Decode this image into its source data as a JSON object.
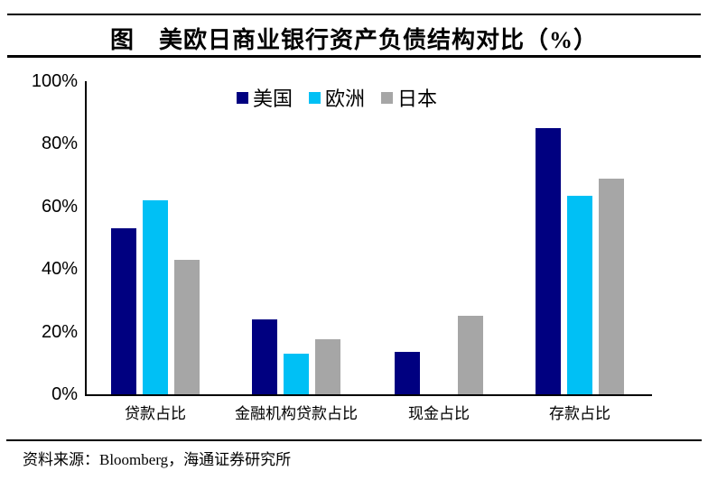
{
  "page": {
    "title": "图　美欧日商业银行资产负债结构对比（%）",
    "source_label": "资料来源：Bloomberg，海通证券研究所"
  },
  "chart_data": {
    "type": "bar",
    "title": "美欧日商业银行资产负债结构对比（%）",
    "categories": [
      "贷款占比",
      "金融机构贷款占比",
      "现金占比",
      "存款占比"
    ],
    "series": [
      {
        "id": "us",
        "name": "美国",
        "color": "#000080",
        "values": [
          53,
          24,
          13.5,
          85
        ]
      },
      {
        "id": "europe",
        "name": "欧洲",
        "color": "#00C0F5",
        "values": [
          62,
          13,
          0,
          63.5
        ]
      },
      {
        "id": "japan",
        "name": "日本",
        "color": "#A6A6A6",
        "values": [
          43,
          17.5,
          25,
          69
        ]
      }
    ],
    "ylabel": "",
    "xlabel": "",
    "ylim": [
      0,
      100
    ],
    "ytick_values": [
      0,
      20,
      40,
      60,
      80,
      100
    ],
    "yticks": [
      "0%",
      "20%",
      "40%",
      "60%",
      "80%",
      "100%"
    ],
    "legend_position": "top-center",
    "grid": false
  }
}
